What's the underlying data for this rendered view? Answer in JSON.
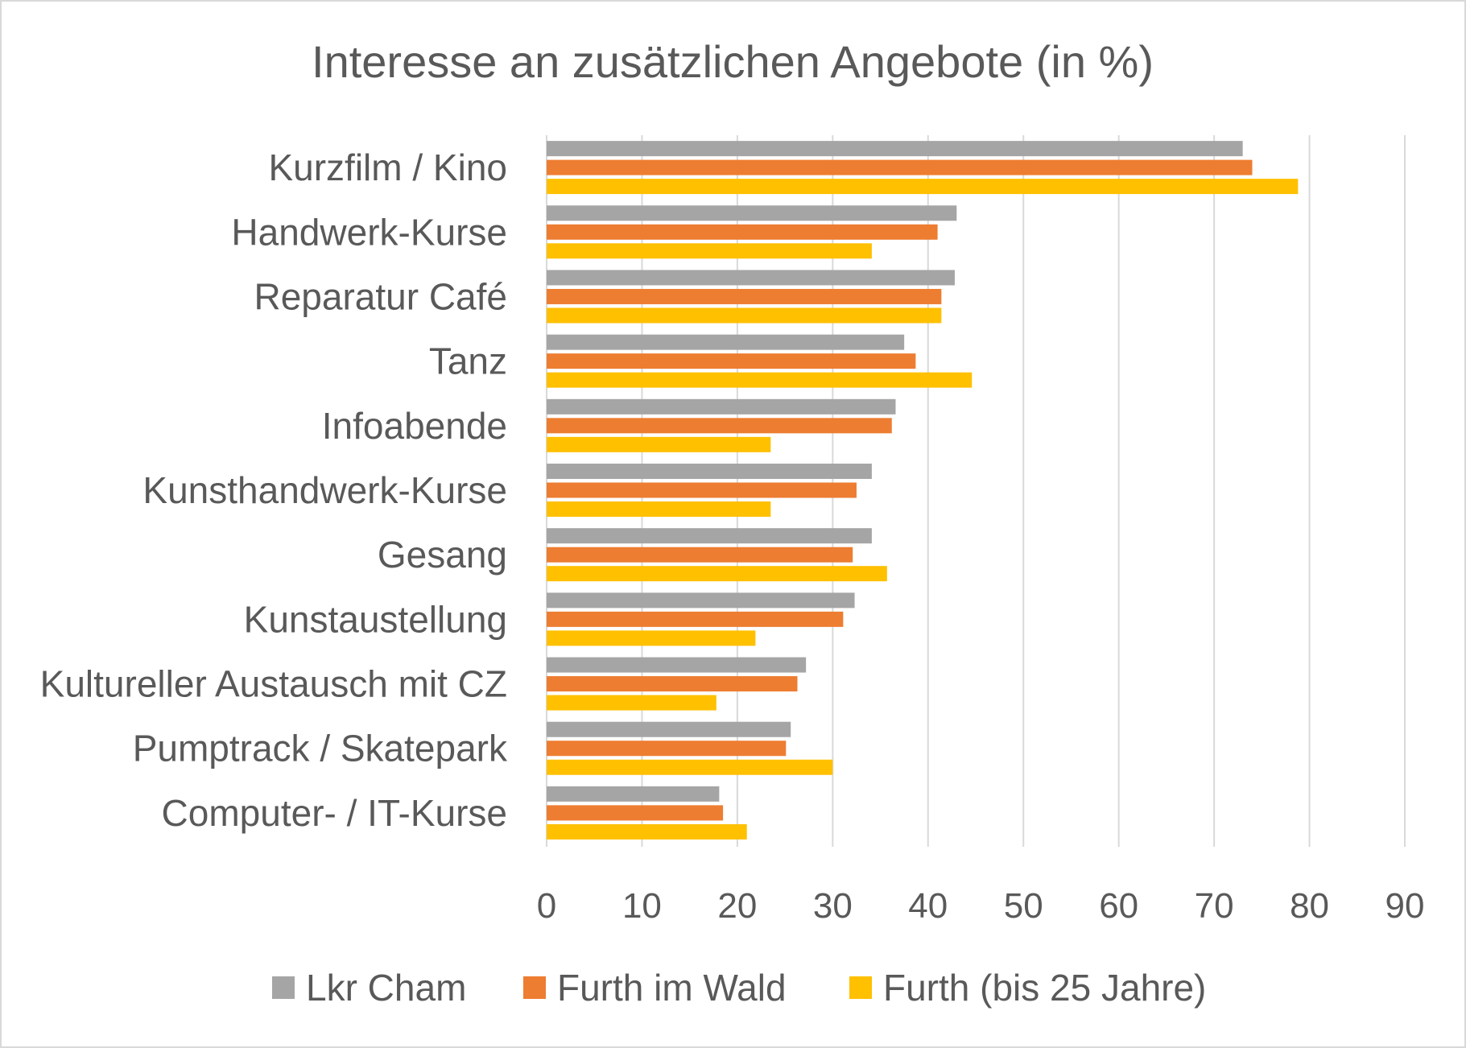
{
  "chart_data": {
    "type": "bar",
    "orientation": "horizontal",
    "title": "Interesse an zusätzlichen Angebote (in %)",
    "xlabel": "",
    "ylabel": "",
    "categories": [
      "Kurzfilm / Kino",
      "Handwerk-Kurse",
      "Reparatur Café",
      "Tanz",
      "Infoabende",
      "Kunsthandwerk-Kurse",
      "Gesang",
      "Kunstaustellung",
      "Kultureller Austausch mit CZ",
      "Pumptrack / Skatepark",
      "Computer- / IT-Kurse"
    ],
    "series": [
      {
        "name": "Lkr Cham",
        "color": "#a5a5a5",
        "values": [
          73,
          43,
          42.8,
          37.5,
          36.6,
          34.1,
          34.1,
          32.3,
          27.2,
          25.6,
          18.1
        ]
      },
      {
        "name": "Furth im Wald",
        "color": "#ed7d31",
        "values": [
          74,
          41,
          41.4,
          38.7,
          36.2,
          32.5,
          32.1,
          31.1,
          26.3,
          25.1,
          18.5
        ]
      },
      {
        "name": "Furth (bis 25 Jahre)",
        "color": "#ffc000",
        "values": [
          78.8,
          34.1,
          41.4,
          44.6,
          23.5,
          23.5,
          35.7,
          21.9,
          17.8,
          30,
          21
        ]
      }
    ],
    "xlim": [
      0,
      90
    ],
    "xticks": [
      "0",
      "10",
      "20",
      "30",
      "40",
      "50",
      "60",
      "70",
      "80",
      "90"
    ],
    "grid": "vertical",
    "legend": "bottom"
  }
}
